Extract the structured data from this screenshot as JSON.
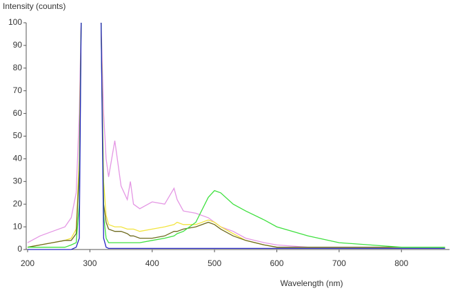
{
  "chart_data": {
    "type": "line",
    "ylabel": "Intensity (counts)",
    "xlabel": "Wavelength (nm)",
    "x": [
      200,
      220,
      240,
      260,
      270,
      278,
      283,
      286,
      300,
      318,
      322,
      326,
      330,
      340,
      350,
      360,
      365,
      370,
      380,
      400,
      420,
      435,
      440,
      450,
      470,
      490,
      500,
      510,
      530,
      550,
      580,
      600,
      650,
      700,
      750,
      800,
      850,
      870
    ],
    "series": [
      {
        "color": "#e496e4",
        "values": [
          3,
          6,
          8,
          10,
          14,
          25,
          60,
          100,
          null,
          100,
          60,
          40,
          32,
          48,
          28,
          22,
          30,
          20,
          18,
          21,
          20,
          27,
          22,
          17,
          16,
          14,
          12,
          10,
          8,
          5,
          3,
          2,
          1,
          1,
          1,
          1,
          1,
          1
        ]
      },
      {
        "color": "#f2e43c",
        "values": [
          1,
          2,
          3,
          4,
          5,
          9,
          40,
          100,
          null,
          100,
          30,
          15,
          11,
          10,
          10,
          9,
          9,
          9,
          8,
          9,
          10,
          11,
          12,
          11,
          11,
          13,
          12,
          10,
          7,
          4,
          2,
          1,
          1,
          1,
          1,
          1,
          1,
          1
        ]
      },
      {
        "color": "#6e6a1e",
        "values": [
          1,
          2,
          3,
          4,
          4,
          7,
          35,
          100,
          null,
          100,
          20,
          12,
          9,
          8,
          8,
          7,
          6,
          6,
          5,
          5,
          6,
          8,
          8,
          9,
          10,
          12,
          11,
          9,
          6,
          4,
          2,
          1,
          1,
          1,
          1,
          1,
          1,
          1
        ]
      },
      {
        "color": "#3ee03e",
        "values": [
          1,
          1,
          1,
          1,
          2,
          3,
          20,
          100,
          null,
          100,
          15,
          5,
          3,
          3,
          3,
          3,
          3,
          3,
          3,
          4,
          5,
          6,
          7,
          8,
          12,
          23,
          26,
          25,
          20,
          17,
          13,
          10,
          6,
          3,
          2,
          1,
          1,
          1
        ]
      },
      {
        "color": "#2424c0",
        "values": [
          0,
          0,
          0,
          0,
          0,
          1,
          5,
          100,
          null,
          100,
          5,
          1,
          0.5,
          0.5,
          0.5,
          0.5,
          0.5,
          0.5,
          0.5,
          0.5,
          0.5,
          0.5,
          0.5,
          0.5,
          0.5,
          0.5,
          0.5,
          0.5,
          0.5,
          0.5,
          0.5,
          0.5,
          0.5,
          0.5,
          0.5,
          0.5,
          0.5,
          0.5
        ]
      }
    ],
    "xlim": [
      200,
      875
    ],
    "ylim": [
      0,
      100
    ],
    "xticks": [
      200,
      300,
      400,
      500,
      600,
      700,
      800
    ],
    "yticks": [
      0,
      10,
      20,
      30,
      40,
      50,
      60,
      70,
      80,
      90,
      100
    ]
  }
}
